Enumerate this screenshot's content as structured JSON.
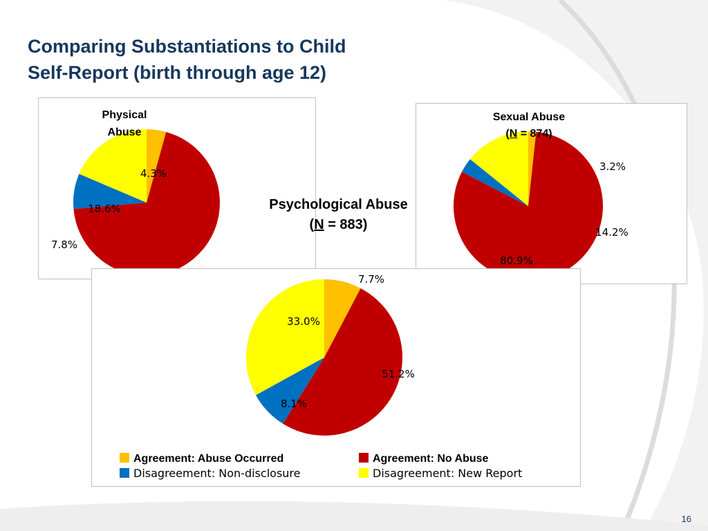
{
  "slide": {
    "title_line1": "Comparing Substantiations to Child",
    "title_line2": "Self-Report (birth through age 12)",
    "page_number": "16"
  },
  "colors": {
    "agreement_abuse_occurred": "#ffc000",
    "agreement_no_abuse": "#c00000",
    "disagreement_non_disclosure": "#0070c0",
    "disagreement_new_report": "#ffff00"
  },
  "chart_data": [
    {
      "id": "physical",
      "type": "pie",
      "title_line1": "Physical",
      "title_line2": "Abuse",
      "title_n": "",
      "title_suffix": "",
      "slices": [
        {
          "category": "Agreement: Abuse Occurred",
          "value": 4.3,
          "label": ""
        },
        {
          "category": "Agreement: No Abuse",
          "value": 69.3,
          "label": ""
        },
        {
          "category": "Disagreement: Non-disclosure",
          "value": 7.8,
          "label": ""
        },
        {
          "category": "Disagreement: New Report",
          "value": 18.6,
          "label": ""
        }
      ],
      "printed_labels": [
        "4.3%",
        "18.6%",
        "7.8%"
      ]
    },
    {
      "id": "sexual",
      "type": "pie",
      "title_line1": "Sexual Abuse",
      "title_prefix": "(",
      "title_n": "N",
      "title_suffix": " = 874)",
      "slices": [
        {
          "category": "Agreement: Abuse Occurred",
          "value": 1.7,
          "label": ""
        },
        {
          "category": "Agreement: No Abuse",
          "value": 80.9,
          "label": "80.9%"
        },
        {
          "category": "Disagreement: Non-disclosure",
          "value": 3.2,
          "label": "3.2%"
        },
        {
          "category": "Disagreement: New Report",
          "value": 14.2,
          "label": "14.2%"
        }
      ]
    },
    {
      "id": "psychological",
      "type": "pie",
      "title_line1": "Psychological Abuse",
      "title_prefix": "(",
      "title_n": "N",
      "title_suffix": " = 883)",
      "slices": [
        {
          "category": "Agreement: Abuse Occurred",
          "value": 7.7,
          "label": "7.7%"
        },
        {
          "category": "Agreement: No Abuse",
          "value": 51.2,
          "label": "51.2%"
        },
        {
          "category": "Disagreement: Non-disclosure",
          "value": 8.1,
          "label": "8.1%"
        },
        {
          "category": "Disagreement: New Report",
          "value": 33.0,
          "label": "33.0%"
        }
      ],
      "legend": [
        {
          "label": "Agreement: Abuse Occurred",
          "color": "#ffc000",
          "bold": true
        },
        {
          "label": "Agreement: No Abuse",
          "color": "#c00000",
          "bold": true
        },
        {
          "label": "Disagreement: Non-disclosure",
          "color": "#0070c0",
          "bold": false
        },
        {
          "label": "Disagreement: New Report",
          "color": "#ffff00",
          "bold": false
        }
      ]
    }
  ]
}
